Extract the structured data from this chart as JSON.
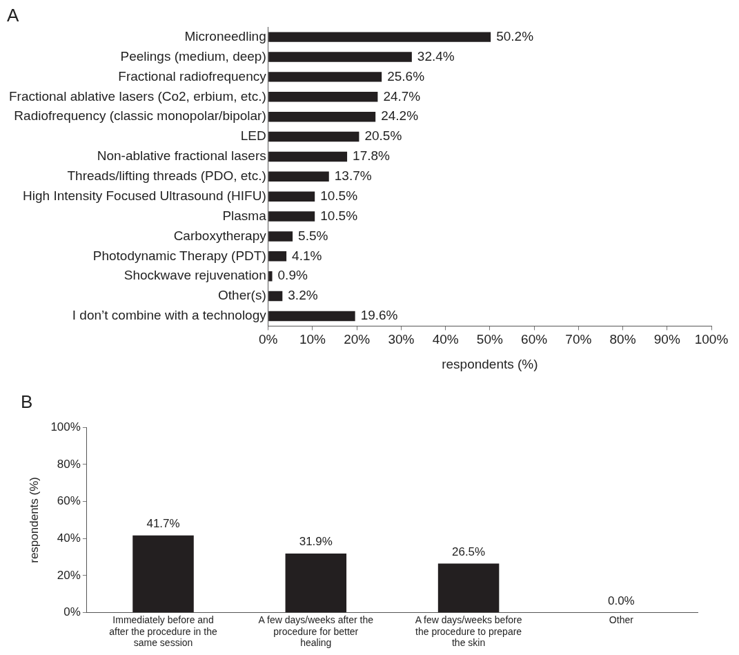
{
  "chart_data": [
    {
      "type": "bar",
      "title": "A",
      "orientation": "horizontal",
      "xlabel": "respondents (%)",
      "categories": [
        "Microneedling",
        "Peelings (medium, deep)",
        "Fractional radiofrequency",
        "Fractional ablative lasers (Co2, erbium, etc.)",
        "Radiofrequency (classic monopolar/bipolar)",
        "LED",
        "Non-ablative fractional lasers",
        "Threads/lifting threads (PDO, etc.)",
        "High Intensity Focused Ultrasound (HIFU)",
        "Plasma",
        "Carboxytherapy",
        "Photodynamic Therapy (PDT)",
        "Shockwave rejuvenation",
        "Other(s)",
        "I don’t combine with a technology"
      ],
      "values": [
        50.2,
        32.4,
        25.6,
        24.7,
        24.2,
        20.5,
        17.8,
        13.7,
        10.5,
        10.5,
        5.5,
        4.1,
        0.9,
        3.2,
        19.6
      ],
      "value_labels": [
        "50.2%",
        "32.4%",
        "25.6%",
        "24.7%",
        "24.2%",
        "20.5%",
        "17.8%",
        "13.7%",
        "10.5%",
        "10.5%",
        "5.5%",
        "4.1%",
        "0.9%",
        "3.2%",
        "19.6%"
      ],
      "color": "#231f20",
      "xlim": [
        0,
        100
      ],
      "xticks": [
        {
          "value": 0,
          "label": "0%"
        },
        {
          "value": 10,
          "label": "10%"
        },
        {
          "value": 20,
          "label": "20%"
        },
        {
          "value": 30,
          "label": "30%"
        },
        {
          "value": 40,
          "label": "40%"
        },
        {
          "value": 50,
          "label": "50%"
        },
        {
          "value": 60,
          "label": "60%"
        },
        {
          "value": 70,
          "label": "70%"
        },
        {
          "value": 80,
          "label": "80%"
        },
        {
          "value": 90,
          "label": "90%"
        },
        {
          "value": 100,
          "label": "100%"
        }
      ],
      "grid": false,
      "legend": false
    },
    {
      "type": "bar",
      "title": "B",
      "ylabel": "respondents (%)",
      "categories": [
        "Immediately before and after the procedure in the same session",
        "A few days/weeks after the procedure for better healing",
        "A few days/weeks before the procedure to prepare the skin",
        "Other"
      ],
      "values": [
        41.7,
        31.9,
        26.5,
        0.0
      ],
      "value_labels": [
        "41.7%",
        "31.9%",
        "26.5%",
        "0.0%"
      ],
      "color": "#231f20",
      "ylim": [
        0,
        100
      ],
      "yticks": [
        {
          "value": 0,
          "label": "0%"
        },
        {
          "value": 20,
          "label": "20%"
        },
        {
          "value": 40,
          "label": "40%"
        },
        {
          "value": 60,
          "label": "60%"
        },
        {
          "value": 80,
          "label": "80%"
        },
        {
          "value": 100,
          "label": "100%"
        }
      ],
      "grid": false,
      "legend": false
    }
  ]
}
